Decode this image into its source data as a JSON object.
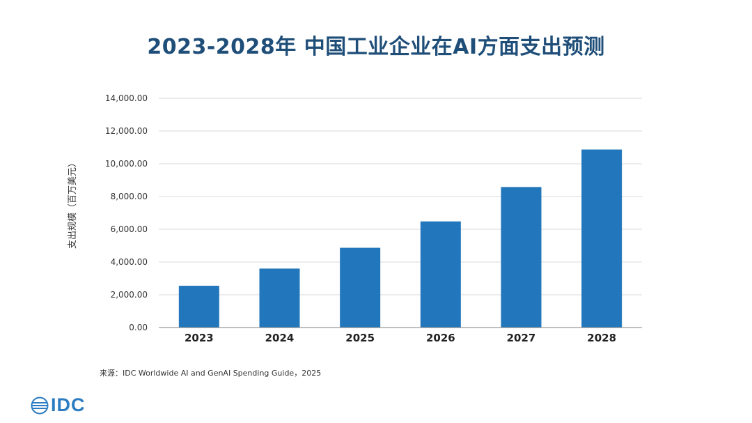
{
  "title": "2023-2028年 中国工业企业在AI方面支出预测",
  "source": "来源：IDC Worldwide AI and GenAI Spending Guide，2025",
  "logo": {
    "text": "IDC"
  },
  "colors": {
    "title": "#1f4e79",
    "bar": "#2277bc",
    "logo": "#2b7cc1"
  },
  "chart_data": {
    "type": "bar",
    "title": "2023-2028年 中国工业企业在AI方面支出预测",
    "xlabel": "",
    "ylabel": "支出规模（百万美元）",
    "categories": [
      "2023",
      "2024",
      "2025",
      "2026",
      "2027",
      "2028"
    ],
    "values": [
      2550,
      3600,
      4870,
      6480,
      8580,
      10870
    ],
    "ylim": [
      0,
      14000
    ],
    "yticks": [
      0,
      2000,
      4000,
      6000,
      8000,
      10000,
      12000,
      14000
    ],
    "ytick_labels": [
      "0.00",
      "2,000.00",
      "4,000.00",
      "6,000.00",
      "8,000.00",
      "10,000.00",
      "12,000.00",
      "14,000.00"
    ],
    "grid": true,
    "legend": "none"
  }
}
